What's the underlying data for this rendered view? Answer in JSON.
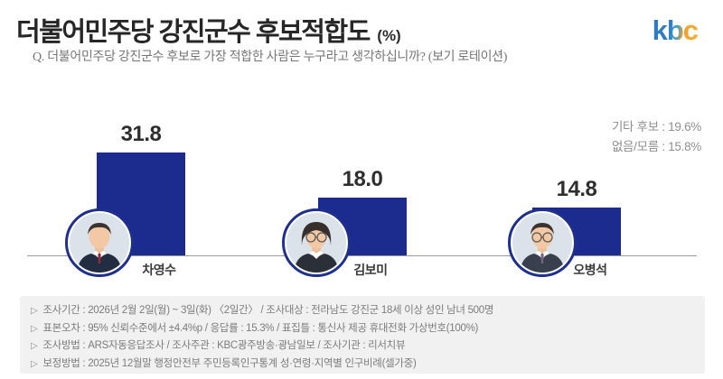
{
  "header": {
    "title": "더불어민주당 강진군수 후보적합도",
    "title_unit": "(%)",
    "logo_text": "kbc",
    "question": "Q. 더불어민주당 강진군수 후보로 가장 적합한 사람은 누구라고 생각하십니까? (보기 로테이션)"
  },
  "chart_data": {
    "type": "bar",
    "title": "더불어민주당 강진군수 후보적합도 (%)",
    "categories": [
      "차영수",
      "김보미",
      "오병석"
    ],
    "values": [
      31.8,
      18.0,
      14.8
    ],
    "value_labels": [
      "31.8",
      "18.0",
      "14.8"
    ],
    "ylim": [
      0,
      36
    ],
    "grid": false,
    "legend": "none",
    "bar_color": "#1b2c8e",
    "other_responses": [
      {
        "label": "기타 후보",
        "value": 19.6,
        "display": "기타 후보 : 19.6%"
      },
      {
        "label": "없음/모름",
        "value": 15.8,
        "display": "없음/모름 : 15.8%"
      }
    ],
    "avatars": [
      {
        "glasses": false,
        "hair": "short",
        "tie": "#8c2f3a",
        "suit": "#232d42"
      },
      {
        "glasses": true,
        "hair": "bob",
        "tie": "",
        "suit": "#2b3038"
      },
      {
        "glasses": true,
        "hair": "short",
        "tie": "#7c6286",
        "suit": "#39404d"
      }
    ]
  },
  "footer": {
    "marker": "▷",
    "lines": [
      "조사기간 : 2026년 2월 2일(월) ~ 3일(화) 〈2일간〉 / 조사대상 : 전라남도 강진군 18세 이상 성인 남녀 500명",
      "표본오차 : 95% 신뢰수준에서 ±4.4%p / 응답률 : 15.3% / 표집틀 : 통신사 제공 휴대전화 가상번호(100%)",
      "조사방법 : ARS자동응답조사 / 조사주관 : KBC광주방송·광남일보 / 조사기관 : 리서치뷰",
      "보정방법 : 2025년 12월말 행정안전부 주민등록인구통계 성·연령·지역별 인구비례(셀가중)"
    ]
  }
}
